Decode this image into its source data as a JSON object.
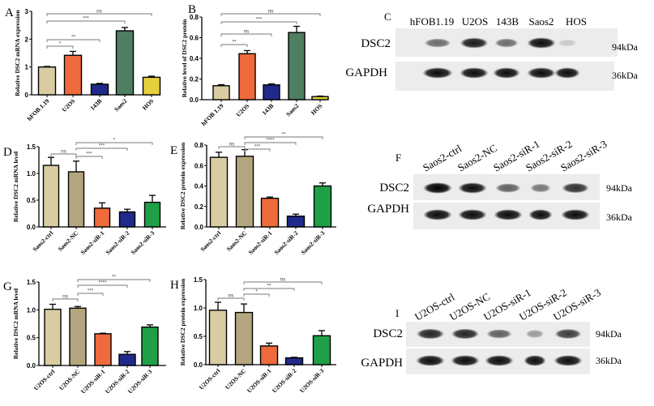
{
  "chart_data": [
    {
      "panel": "A",
      "type": "bar",
      "ylabel": "Relative DSC2 mRNA expression",
      "categories": [
        "hFOB 1.19",
        "U2OS",
        "143B",
        "Saos2",
        "HOS"
      ],
      "values": [
        1.0,
        1.42,
        0.38,
        2.3,
        0.63
      ],
      "errors": [
        0.02,
        0.14,
        0.03,
        0.12,
        0.04
      ],
      "ylim": [
        0,
        3
      ],
      "yticks": [
        "0",
        "1",
        "2",
        "3"
      ],
      "colors": [
        "#d9cca2",
        "#ef6a3c",
        "#1f2a8a",
        "#4e7f61",
        "#e4cf3c"
      ],
      "significance": [
        {
          "from": 0,
          "to": 1,
          "label": "*"
        },
        {
          "from": 0,
          "to": 2,
          "label": "**"
        },
        {
          "from": 0,
          "to": 3,
          "label": "***"
        },
        {
          "from": 0,
          "to": 4,
          "label": "ns"
        }
      ]
    },
    {
      "panel": "B",
      "type": "bar",
      "ylabel": "Relative level of DSC2 protein",
      "categories": [
        "hFOB 1.19",
        "U2OS",
        "143B",
        "Saos2",
        "HOS"
      ],
      "values": [
        0.135,
        0.445,
        0.143,
        0.65,
        0.03
      ],
      "errors": [
        0.01,
        0.03,
        0.01,
        0.06,
        0.005
      ],
      "ylim": [
        0,
        0.8
      ],
      "yticks": [
        "0.0",
        "0.2",
        "0.4",
        "0.6",
        "0.8"
      ],
      "colors": [
        "#d9cca2",
        "#ef6a3c",
        "#1f2a8a",
        "#4e7f61",
        "#e4cf3c"
      ],
      "significance": [
        {
          "from": 0,
          "to": 1,
          "label": "**"
        },
        {
          "from": 0,
          "to": 2,
          "label": "ns"
        },
        {
          "from": 0,
          "to": 3,
          "label": "***"
        },
        {
          "from": 0,
          "to": 4,
          "label": "ns"
        }
      ]
    },
    {
      "panel": "D",
      "type": "bar",
      "ylabel": "Relative DSC2 mRNA level",
      "categories": [
        "Saos2-ctrl",
        "Saos2-NC",
        "Saos2-siR-1",
        "Saos2-siR-2",
        "Saos2-siR-3"
      ],
      "values": [
        1.15,
        1.03,
        0.35,
        0.28,
        0.46
      ],
      "errors": [
        0.15,
        0.2,
        0.1,
        0.05,
        0.13
      ],
      "ylim": [
        0,
        1.5
      ],
      "yticks": [
        "0.0",
        "0.5",
        "1.0",
        "1.5"
      ],
      "colors": [
        "#d9cca2",
        "#b3a57d",
        "#ef6a3c",
        "#1f2a8a",
        "#1fa048"
      ],
      "significance": [
        {
          "from": 0,
          "to": 1,
          "label": "ns"
        },
        {
          "from": 1,
          "to": 2,
          "label": "***"
        },
        {
          "from": 1,
          "to": 3,
          "label": "***"
        },
        {
          "from": 1,
          "to": 4,
          "label": "*"
        }
      ]
    },
    {
      "panel": "E",
      "type": "bar",
      "ylabel": "Relative DSC2 protein expression",
      "categories": [
        "Saos2-ctrl",
        "Saos2-NC",
        "Saos2-siR-1",
        "Saos2-siR-2",
        "Saos2-siR-3"
      ],
      "values": [
        0.68,
        0.69,
        0.28,
        0.105,
        0.4
      ],
      "errors": [
        0.05,
        0.065,
        0.012,
        0.02,
        0.03
      ],
      "ylim": [
        0,
        0.8
      ],
      "yticks": [
        "0.0",
        "0.2",
        "0.4",
        "0.6",
        "0.8"
      ],
      "colors": [
        "#d9cca2",
        "#b3a57d",
        "#ef6a3c",
        "#1f2a8a",
        "#1fa048"
      ],
      "significance": [
        {
          "from": 0,
          "to": 1,
          "label": "ns"
        },
        {
          "from": 1,
          "to": 2,
          "label": "***"
        },
        {
          "from": 1,
          "to": 3,
          "label": "****"
        },
        {
          "from": 1,
          "to": 4,
          "label": "**"
        }
      ]
    },
    {
      "panel": "G",
      "type": "bar",
      "ylabel": "Relative DSC2 mRNA level",
      "categories": [
        "U2OS-ctrl",
        "U2OS-NC",
        "U2OS-siR-1",
        "U2OS-siR-2",
        "U2OS-siR-3"
      ],
      "values": [
        1.01,
        1.03,
        0.57,
        0.2,
        0.69
      ],
      "errors": [
        0.09,
        0.03,
        0.01,
        0.05,
        0.04
      ],
      "ylim": [
        0,
        1.5
      ],
      "yticks": [
        "0.0",
        "0.5",
        "1.0",
        "1.5"
      ],
      "colors": [
        "#d9cca2",
        "#b3a57d",
        "#ef6a3c",
        "#1f2a8a",
        "#1fa048"
      ],
      "significance": [
        {
          "from": 0,
          "to": 1,
          "label": "ns"
        },
        {
          "from": 1,
          "to": 2,
          "label": "***"
        },
        {
          "from": 1,
          "to": 3,
          "label": "****"
        },
        {
          "from": 1,
          "to": 4,
          "label": "**"
        }
      ]
    },
    {
      "panel": "H",
      "type": "bar",
      "ylabel": "Relative DSC2 protein expression",
      "categories": [
        "U2OS-ctrl",
        "U2OS-NC",
        "U2OS-siR-1",
        "U2OS-siR-2",
        "U2OS-siR-3"
      ],
      "values": [
        0.96,
        0.92,
        0.33,
        0.12,
        0.51
      ],
      "errors": [
        0.14,
        0.15,
        0.05,
        0.01,
        0.09
      ],
      "ylim": [
        0,
        1.5
      ],
      "yticks": [
        "0.0",
        "0.5",
        "1.0",
        "1.5"
      ],
      "colors": [
        "#d9cca2",
        "#b3a57d",
        "#ef6a3c",
        "#1f2a8a",
        "#1fa048"
      ],
      "significance": [
        {
          "from": 0,
          "to": 1,
          "label": "ns"
        },
        {
          "from": 1,
          "to": 2,
          "label": "*"
        },
        {
          "from": 1,
          "to": 3,
          "label": "**"
        },
        {
          "from": 1,
          "to": 4,
          "label": "ns"
        }
      ]
    }
  ],
  "blots": [
    {
      "panel": "C",
      "lanes": [
        "hFOB1.19",
        "U2OS",
        "143B",
        "Saos2",
        "HOS"
      ],
      "rows": [
        {
          "label": "DSC2",
          "size": "94kDa",
          "intensity": [
            0.55,
            0.9,
            0.55,
            0.95,
            0.15
          ]
        },
        {
          "label": "GAPDH",
          "size": "36kDa",
          "intensity": [
            0.95,
            0.95,
            0.95,
            0.95,
            0.95
          ]
        }
      ]
    },
    {
      "panel": "F",
      "lanes": [
        "Saos2-ctrl",
        "Saos2-NC",
        "Saos2-siR-1",
        "Saos2-siR-2",
        "Saos2-siR-3"
      ],
      "rows": [
        {
          "label": "DSC2",
          "size": "94kDa",
          "intensity": [
            1.0,
            0.95,
            0.6,
            0.5,
            0.8
          ]
        },
        {
          "label": "GAPDH",
          "size": "36kDa",
          "intensity": [
            0.95,
            0.95,
            0.95,
            0.95,
            0.95
          ]
        }
      ]
    },
    {
      "panel": "I",
      "lanes": [
        "U2OS-ctrl",
        "U2OS-NC",
        "U2OS-siR-1",
        "U2OS-siR-2",
        "U2OS-siR-3"
      ],
      "rows": [
        {
          "label": "DSC2",
          "size": "94kDa",
          "intensity": [
            0.85,
            0.85,
            0.6,
            0.35,
            0.75
          ]
        },
        {
          "label": "GAPDH",
          "size": "36kDa",
          "intensity": [
            0.95,
            0.95,
            0.95,
            0.95,
            0.95
          ]
        }
      ]
    }
  ]
}
